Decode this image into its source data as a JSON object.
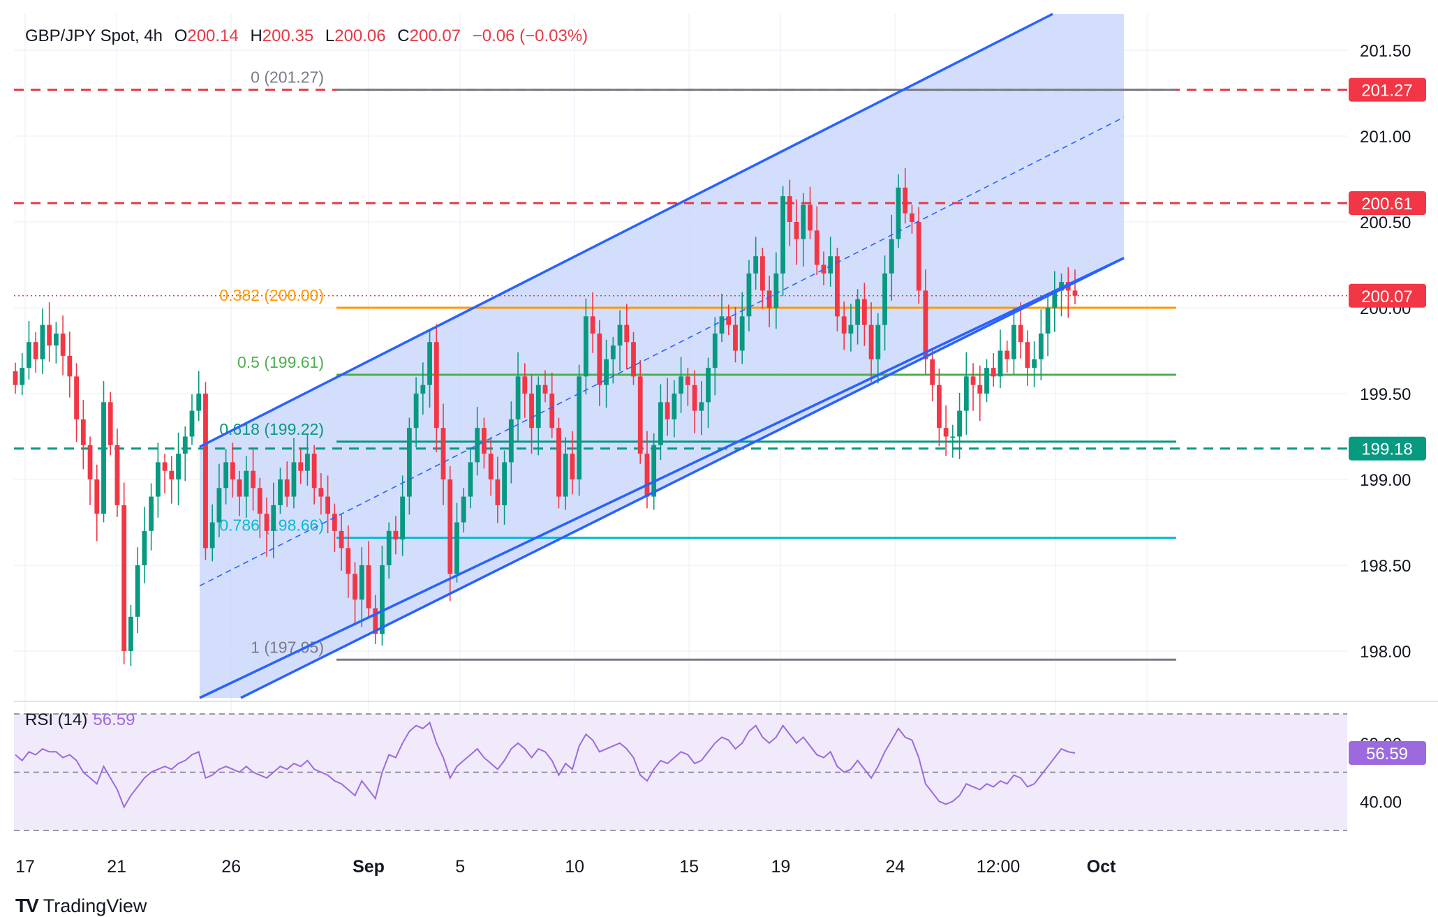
{
  "header": {
    "symbol": "GBP/JPY Spot, 4h",
    "open_label": "O",
    "open": "200.14",
    "high_label": "H",
    "high": "200.35",
    "low_label": "L",
    "low": "200.06",
    "close_label": "C",
    "close": "200.07",
    "change": "−0.06 (−0.03%)"
  },
  "rsi_header": {
    "label": "RSI (14)",
    "value": "56.59"
  },
  "brand": {
    "name": "TradingView",
    "logo": "TV"
  },
  "colors": {
    "up": "#089981",
    "down": "#f23645",
    "channel": "#2962ff",
    "channel_fill": "#c8d6fb",
    "red_dash": "#e53946",
    "green_dash": "#089981",
    "fib_gray": "#787b86",
    "fib_orange": "#ff9800",
    "fib_green": "#4caf50",
    "fib_teal": "#089981",
    "fib_cyan": "#00bcd4",
    "rsi_line": "#9c6ade",
    "rsi_bg": "#f0eafb"
  },
  "chart_data": [
    {
      "type": "candlestick",
      "title": "GBP/JPY Spot, 4h",
      "ylim": [
        197.75,
        201.7
      ],
      "y_ticks": [
        "201.50",
        "201.00",
        "200.50",
        "200.00",
        "199.50",
        "199.00",
        "198.50",
        "198.00"
      ],
      "x_ticks": [
        "17",
        "21",
        "26",
        "Sep",
        "5",
        "10",
        "15",
        "19",
        "24",
        "12:00",
        "Oct"
      ],
      "price_tags": [
        {
          "value": "201.27",
          "color": "#f23645"
        },
        {
          "value": "200.61",
          "color": "#f23645"
        },
        {
          "value": "200.07",
          "color": "#f23645"
        },
        {
          "value": "199.18",
          "color": "#089981"
        }
      ],
      "horizontal_levels": [
        {
          "price": 201.27,
          "style": "dashed",
          "color": "#e53946"
        },
        {
          "price": 200.61,
          "style": "dashed",
          "color": "#e53946"
        },
        {
          "price": 199.18,
          "style": "dashed",
          "color": "#089981"
        },
        {
          "price": 200.07,
          "style": "dotted",
          "color": "#f23645"
        }
      ],
      "fibonacci": [
        {
          "label": "0 (201.27)",
          "price": 201.27,
          "color": "#787b86"
        },
        {
          "label": "0.382 (200.00)",
          "price": 200.0,
          "color": "#ff9800"
        },
        {
          "label": "0.5 (199.61)",
          "price": 199.61,
          "color": "#4caf50"
        },
        {
          "label": "0.618 (199.22)",
          "price": 199.22,
          "color": "#089981"
        },
        {
          "label": "0.786 (198.66)",
          "price": 198.66,
          "color": "#00bcd4"
        },
        {
          "label": "1 (197.95)",
          "price": 197.95,
          "color": "#787b86"
        }
      ],
      "channel": {
        "lower": [
          [
            1.6,
            197.68
          ],
          [
            10.1,
            200.29
          ]
        ],
        "upper": [
          [
            1.6,
            199.19
          ],
          [
            10.1,
            201.89
          ]
        ],
        "middle": [
          [
            1.6,
            198.38
          ],
          [
            10.1,
            201.11
          ]
        ]
      },
      "closes": [
        199.55,
        199.65,
        199.8,
        199.7,
        199.9,
        199.78,
        199.85,
        199.72,
        199.6,
        199.35,
        199.2,
        199.0,
        198.8,
        199.45,
        199.2,
        198.85,
        198.0,
        198.2,
        198.5,
        198.7,
        198.9,
        199.1,
        199.05,
        199.0,
        199.15,
        199.25,
        199.4,
        199.5,
        198.6,
        198.75,
        198.95,
        199.1,
        199.0,
        198.9,
        199.05,
        198.95,
        198.8,
        198.7,
        198.85,
        199.0,
        198.9,
        199.1,
        199.05,
        199.15,
        198.95,
        198.9,
        198.8,
        198.7,
        198.6,
        198.45,
        198.3,
        198.5,
        198.25,
        198.1,
        198.5,
        198.7,
        198.65,
        198.9,
        199.3,
        199.5,
        199.55,
        199.8,
        199.3,
        199.0,
        198.45,
        198.75,
        198.9,
        199.1,
        199.3,
        199.15,
        199.0,
        198.85,
        199.1,
        199.35,
        199.6,
        199.5,
        199.3,
        199.55,
        199.5,
        199.3,
        198.9,
        199.15,
        199.0,
        199.6,
        199.95,
        199.85,
        199.55,
        199.7,
        199.78,
        199.9,
        199.8,
        199.6,
        199.15,
        198.9,
        199.2,
        199.45,
        199.35,
        199.5,
        199.6,
        199.55,
        199.4,
        199.45,
        199.65,
        199.85,
        199.95,
        199.9,
        199.75,
        199.95,
        200.2,
        200.3,
        200.1,
        200.0,
        200.2,
        200.65,
        200.5,
        200.4,
        200.6,
        200.45,
        200.25,
        200.2,
        200.3,
        199.95,
        199.85,
        199.9,
        200.05,
        199.9,
        199.7,
        199.9,
        200.2,
        200.4,
        200.7,
        200.55,
        200.5,
        200.1,
        199.7,
        199.55,
        199.3,
        199.25,
        199.25,
        199.4,
        199.6,
        199.55,
        199.5,
        199.65,
        199.6,
        199.75,
        199.7,
        199.9,
        199.8,
        199.65,
        199.7,
        199.85,
        200.0,
        200.1,
        200.15,
        200.1,
        200.07
      ],
      "rsi": {
        "series_name": "RSI (14)",
        "current": 56.59,
        "ylim": [
          30,
          70
        ],
        "levels": [
          70,
          50,
          30
        ],
        "visible_ticks": [
          "60.00",
          "40.00"
        ],
        "values": [
          56,
          54,
          57,
          56,
          58,
          57,
          57,
          55,
          56,
          54,
          50,
          48,
          46,
          52,
          48,
          44,
          38,
          42,
          45,
          48,
          50,
          51,
          52,
          51,
          53,
          54,
          56,
          57,
          48,
          49,
          51,
          52,
          51,
          50,
          52,
          50,
          49,
          48,
          50,
          52,
          51,
          53,
          52,
          54,
          51,
          50,
          49,
          47,
          46,
          44,
          42,
          47,
          44,
          41,
          50,
          56,
          55,
          60,
          64,
          66,
          65,
          67,
          60,
          55,
          48,
          52,
          54,
          56,
          58,
          55,
          53,
          51,
          54,
          58,
          60,
          58,
          55,
          58,
          57,
          54,
          49,
          53,
          51,
          59,
          63,
          61,
          57,
          58,
          59,
          60,
          58,
          55,
          49,
          47,
          51,
          54,
          53,
          55,
          57,
          56,
          53,
          54,
          57,
          60,
          62,
          61,
          58,
          60,
          64,
          66,
          62,
          60,
          62,
          66,
          63,
          60,
          62,
          59,
          56,
          55,
          57,
          52,
          50,
          51,
          54,
          51,
          48,
          52,
          57,
          61,
          65,
          62,
          61,
          55,
          46,
          43,
          40,
          39,
          40,
          42,
          46,
          45,
          44,
          46,
          45,
          47,
          46,
          49,
          48,
          45,
          46,
          49,
          52,
          55,
          58,
          57,
          56.59
        ]
      }
    }
  ]
}
